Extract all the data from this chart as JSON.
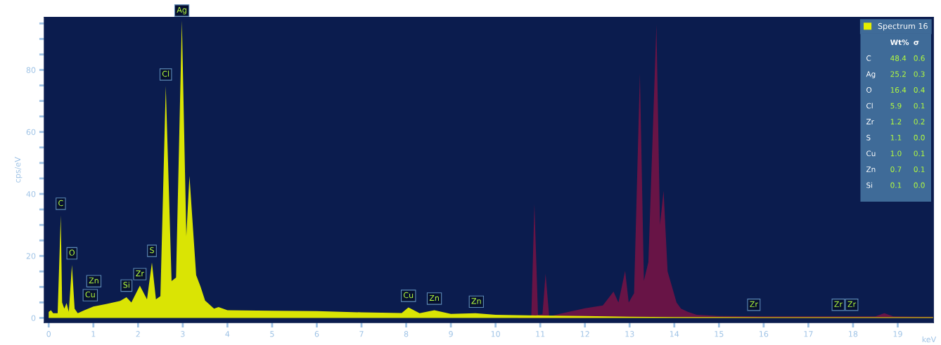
{
  "chart_data": {
    "type": "area",
    "xlabel": "keV",
    "ylabel": "cps/eV",
    "xlim": [
      -0.1,
      19.8
    ],
    "ylim": [
      -1.5,
      97
    ],
    "xticks": [
      0,
      1,
      2,
      3,
      4,
      5,
      6,
      7,
      8,
      9,
      10,
      11,
      12,
      13,
      14,
      15,
      16,
      17,
      18,
      19
    ],
    "yticks": [
      0,
      {
        "value": 5,
        "label": null
      },
      {
        "value": 10,
        "label": null
      },
      {
        "value": 15,
        "label": null
      },
      20,
      {
        "value": 25,
        "label": null
      },
      {
        "value": 30,
        "label": null
      },
      {
        "value": 35,
        "label": null
      },
      40,
      {
        "value": 45,
        "label": null
      },
      {
        "value": 50,
        "label": null
      },
      {
        "value": 55,
        "label": null
      },
      60,
      {
        "value": 65,
        "label": null
      },
      {
        "value": 70,
        "label": null
      },
      {
        "value": 75,
        "label": null
      },
      80,
      {
        "value": 85,
        "label": null
      },
      {
        "value": 90,
        "label": null
      },
      {
        "value": 95,
        "label": null
      }
    ],
    "grid": false,
    "legend": "top right",
    "series": [
      {
        "color": "#6e1446",
        "x": [
          10.5,
          10.8,
          10.87,
          10.95,
          11.05,
          11.12,
          11.2,
          11.5,
          12.0,
          12.4,
          12.64,
          12.75,
          12.9,
          12.98,
          13.1,
          13.23,
          13.32,
          13.42,
          13.6,
          13.68,
          13.76,
          13.85,
          13.95,
          14.05,
          14.15,
          14.3,
          14.5,
          15.0,
          16.0,
          17.0,
          18.5,
          18.7,
          18.9,
          19.5,
          19.8
        ],
        "values": [
          0.3,
          0.5,
          36.7,
          1.0,
          1.2,
          14.3,
          0.5,
          1.5,
          3.1,
          4.0,
          8.5,
          5.0,
          15.2,
          5.0,
          8.0,
          79.0,
          12.0,
          18.0,
          94.7,
          30.0,
          41.0,
          15.0,
          10.0,
          5.0,
          3.0,
          2.0,
          1.0,
          0.6,
          0.5,
          0.5,
          0.5,
          1.5,
          0.5,
          0.4,
          0.4
        ]
      },
      {
        "name": "Spectrum 16",
        "color": "#e6ef00",
        "x": [
          0.0,
          0.05,
          0.1,
          0.2,
          0.27,
          0.3,
          0.35,
          0.4,
          0.45,
          0.52,
          0.58,
          0.65,
          0.8,
          1.0,
          1.3,
          1.6,
          1.74,
          1.85,
          2.04,
          2.2,
          2.31,
          2.4,
          2.5,
          2.62,
          2.75,
          2.85,
          2.98,
          3.08,
          3.15,
          3.3,
          3.4,
          3.5,
          3.7,
          3.8,
          4.0,
          5.0,
          6.0,
          7.0,
          7.9,
          8.05,
          8.3,
          8.63,
          9.0,
          9.55,
          10.0,
          11.0,
          12.0,
          13.0,
          14.0,
          16.0,
          19.8
        ],
        "values": [
          1.9,
          2.5,
          1.5,
          1.5,
          33.1,
          5.0,
          3.0,
          4.8,
          2.0,
          17.1,
          3.0,
          1.5,
          2.5,
          3.7,
          4.5,
          5.5,
          6.7,
          5.0,
          10.4,
          6.0,
          17.9,
          6.0,
          7.0,
          74.8,
          11.9,
          13.0,
          96.0,
          26.4,
          45.8,
          13.8,
          10.0,
          5.6,
          3.0,
          3.5,
          2.5,
          2.3,
          2.2,
          1.8,
          1.6,
          3.4,
          1.5,
          2.5,
          1.3,
          1.5,
          1.0,
          0.8,
          0.6,
          0.4,
          0.3,
          0.2,
          0.2
        ]
      }
    ],
    "annotations": [
      {
        "text": "C",
        "x": 0.27,
        "y": 33.1
      },
      {
        "text": "O",
        "x": 0.52,
        "y": 17.1
      },
      {
        "text": "Cu",
        "x": 0.93,
        "y": 3.6
      },
      {
        "text": "Zn",
        "x": 1.01,
        "y": 3.7
      },
      {
        "text": "Si",
        "x": 1.74,
        "y": 6.7
      },
      {
        "text": "Zr",
        "x": 2.04,
        "y": 10.4
      },
      {
        "text": "S",
        "x": 2.31,
        "y": 17.9
      },
      {
        "text": "Cl",
        "x": 2.62,
        "y": 74.8
      },
      {
        "text": "Ag",
        "x": 2.98,
        "y": 96.0
      },
      {
        "text": "Cu",
        "x": 8.05,
        "y": 3.4
      },
      {
        "text": "Zn",
        "x": 8.63,
        "y": 2.5
      },
      {
        "text": "Zn",
        "x": 9.57,
        "y": 1.5
      },
      {
        "text": "Zr",
        "x": 15.78,
        "y": 0.5
      },
      {
        "text": "Zr",
        "x": 17.67,
        "y": 0.5
      },
      {
        "text": "Zr",
        "x": 17.97,
        "y": 0.5
      },
      "Wt% σ",
      "C 48.4 0.6",
      "Ag 25.2 0.3",
      "O 16.4 0.4",
      "Cl 5.9 0.1",
      "Zr 1.2 0.2",
      "S 1.1 0.0",
      "Cu 1.0 0.1",
      "Zn 0.7 0.1",
      "Si 0.1 0.0"
    ]
  }
}
